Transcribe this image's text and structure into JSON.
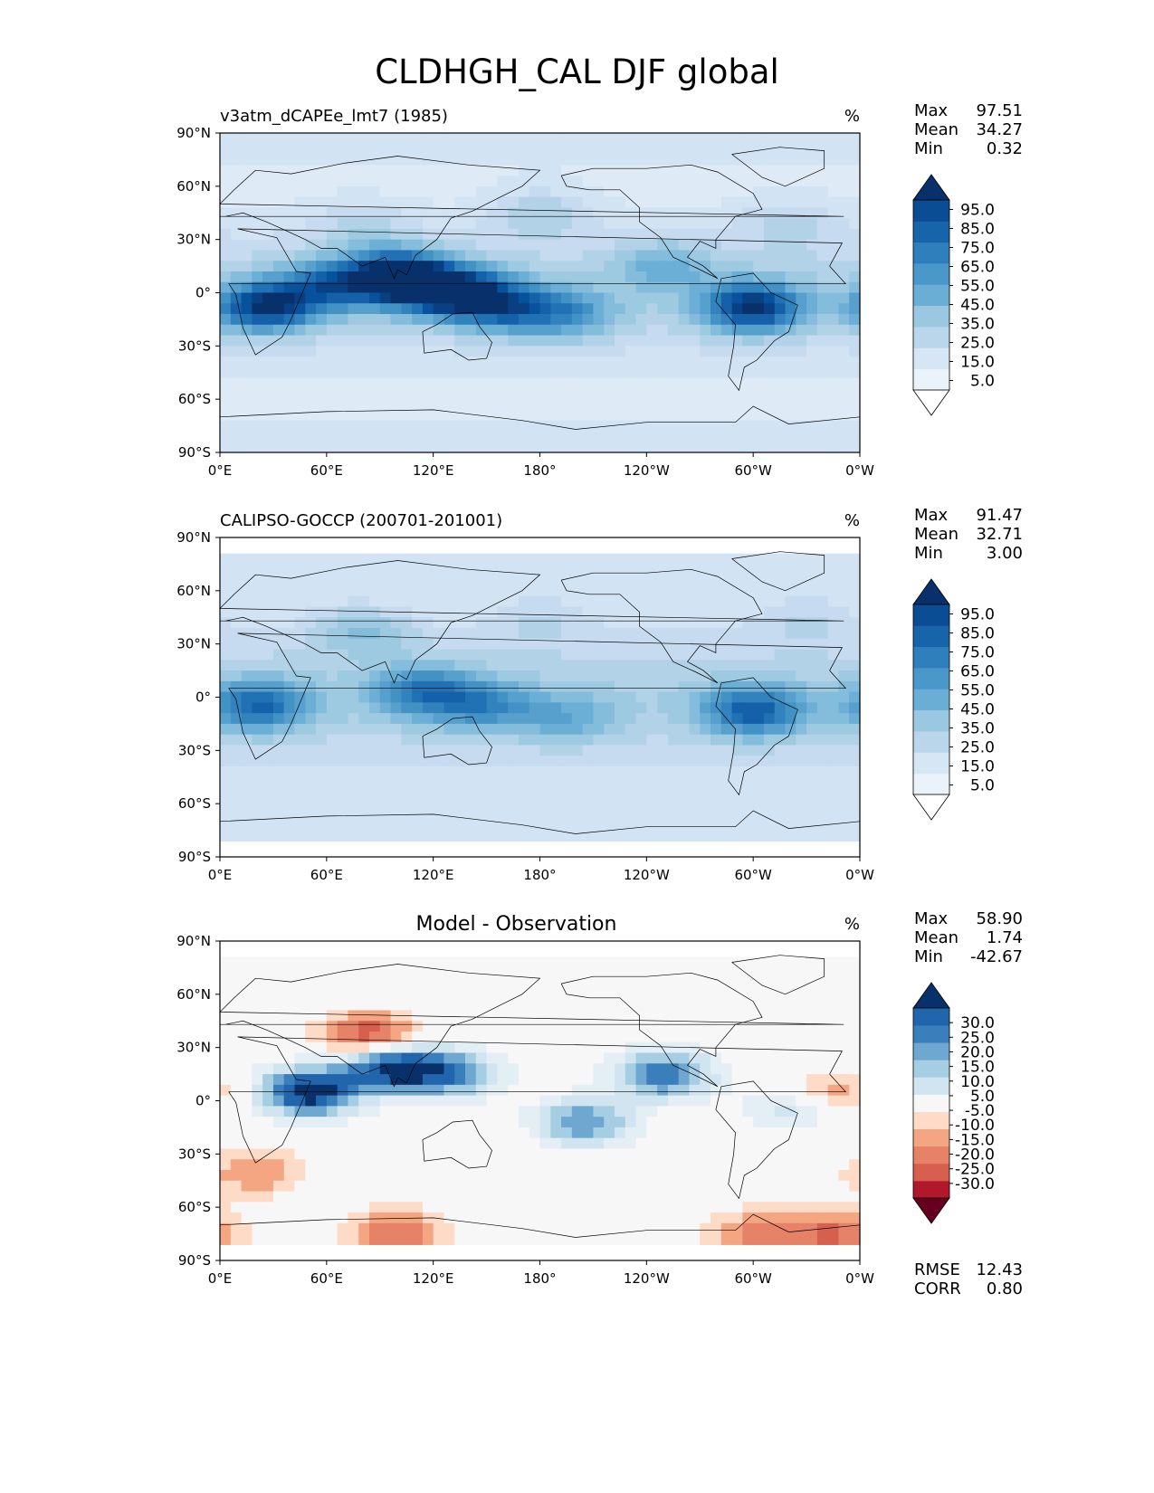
{
  "figure_title": "CLDHGH_CAL DJF global",
  "chart_data": [
    {
      "type": "heatmap",
      "title_left": "v3atm_dCAPEe_lmt7 (1985)",
      "title_center": "",
      "units": "%",
      "stats": [
        {
          "label": "Max",
          "value": "97.51"
        },
        {
          "label": "Mean",
          "value": "34.27"
        },
        {
          "label": "Min",
          "value": "0.32"
        }
      ],
      "colorbar": {
        "scheme": "blues",
        "levels": [
          0,
          5,
          10,
          15,
          20,
          25,
          30,
          35,
          40,
          45,
          50,
          55,
          60,
          65,
          70,
          75,
          80,
          85,
          90,
          95,
          100
        ],
        "tick_labels": [
          "5.0",
          "15.0",
          "25.0",
          "35.0",
          "45.0",
          "55.0",
          "65.0",
          "75.0",
          "85.0",
          "95.0"
        ],
        "extend": "both"
      },
      "x_ticks": [
        "0°E",
        "60°E",
        "120°E",
        "180°",
        "120°W",
        "60°W",
        "0°W"
      ],
      "y_ticks": [
        "90°N",
        "60°N",
        "30°N",
        "0°",
        "30°S",
        "60°S",
        "90°S"
      ],
      "xlim": [
        0,
        360
      ],
      "ylim": [
        -90,
        90
      ],
      "field_features": [
        {
          "lon": 25,
          "lat": -8,
          "value": 90
        },
        {
          "lon": 60,
          "lat": 3,
          "value": 70
        },
        {
          "lon": 95,
          "lat": 12,
          "value": 75
        },
        {
          "lon": 110,
          "lat": 5,
          "value": 85
        },
        {
          "lon": 135,
          "lat": 0,
          "value": 85
        },
        {
          "lon": 160,
          "lat": -8,
          "value": 70
        },
        {
          "lon": 195,
          "lat": -12,
          "value": 60
        },
        {
          "lon": 300,
          "lat": -8,
          "value": 95
        },
        {
          "lon": 250,
          "lat": 15,
          "value": 50
        },
        {
          "lon": 180,
          "lat": 45,
          "value": 45
        },
        {
          "lon": 320,
          "lat": 40,
          "value": 40
        },
        {
          "lon": 80,
          "lat": 38,
          "value": 40
        }
      ],
      "background_value": 28
    },
    {
      "type": "heatmap",
      "title_left": "CALIPSO-GOCCP (200701-201001)",
      "title_center": "",
      "units": "%",
      "stats": [
        {
          "label": "Max",
          "value": "91.47"
        },
        {
          "label": "Mean",
          "value": "32.71"
        },
        {
          "label": "Min",
          "value": "3.00"
        }
      ],
      "colorbar": {
        "scheme": "blues",
        "levels": [
          0,
          5,
          10,
          15,
          20,
          25,
          30,
          35,
          40,
          45,
          50,
          55,
          60,
          65,
          70,
          75,
          80,
          85,
          90,
          95,
          100
        ],
        "tick_labels": [
          "5.0",
          "15.0",
          "25.0",
          "35.0",
          "45.0",
          "55.0",
          "65.0",
          "75.0",
          "85.0",
          "95.0"
        ],
        "extend": "both"
      },
      "x_ticks": [
        "0°E",
        "60°E",
        "120°E",
        "180°",
        "120°W",
        "60°W",
        "0°W"
      ],
      "y_ticks": [
        "90°N",
        "60°N",
        "30°N",
        "0°",
        "30°S",
        "60°S",
        "90°S"
      ],
      "xlim": [
        0,
        360
      ],
      "ylim": [
        -90,
        90
      ],
      "field_features": [
        {
          "lon": 22,
          "lat": -5,
          "value": 75
        },
        {
          "lon": 115,
          "lat": 3,
          "value": 70
        },
        {
          "lon": 150,
          "lat": -5,
          "value": 60
        },
        {
          "lon": 195,
          "lat": -12,
          "value": 50
        },
        {
          "lon": 300,
          "lat": -8,
          "value": 80
        },
        {
          "lon": 80,
          "lat": 38,
          "value": 50
        },
        {
          "lon": 180,
          "lat": 45,
          "value": 40
        },
        {
          "lon": 330,
          "lat": 45,
          "value": 40
        }
      ],
      "background_value": 30
    },
    {
      "type": "heatmap",
      "title_left": "",
      "title_center": "Model - Observation",
      "units": "%",
      "stats": [
        {
          "label": "Max",
          "value": "58.90"
        },
        {
          "label": "Mean",
          "value": "1.74"
        },
        {
          "label": "Min",
          "value": "-42.67"
        }
      ],
      "colorbar": {
        "scheme": "rdbu",
        "levels": [
          -35,
          -30,
          -25,
          -20,
          -15,
          -10,
          -5,
          5,
          10,
          15,
          20,
          25,
          30,
          35
        ],
        "tick_labels": [
          "-30.0",
          "-25.0",
          "-20.0",
          "-15.0",
          "-10.0",
          "-5.0",
          "5.0",
          "10.0",
          "15.0",
          "20.0",
          "25.0",
          "30.0"
        ],
        "extend": "both"
      },
      "x_ticks": [
        "0°E",
        "60°E",
        "120°E",
        "180°",
        "120°W",
        "60°W",
        "0°W"
      ],
      "y_ticks": [
        "90°N",
        "60°N",
        "30°N",
        "0°",
        "30°S",
        "60°S",
        "90°S"
      ],
      "xlim": [
        0,
        360
      ],
      "ylim": [
        -90,
        90
      ],
      "field_features": [
        {
          "lon": 50,
          "lat": 5,
          "value": 40
        },
        {
          "lon": 95,
          "lat": 20,
          "value": 40
        },
        {
          "lon": 130,
          "lat": 15,
          "value": 25
        },
        {
          "lon": 205,
          "lat": -12,
          "value": 25
        },
        {
          "lon": 250,
          "lat": 15,
          "value": 30
        },
        {
          "lon": 325,
          "lat": -3,
          "value": 20
        },
        {
          "lon": 85,
          "lat": 35,
          "value": -30
        },
        {
          "lon": 20,
          "lat": -40,
          "value": -15
        },
        {
          "lon": 100,
          "lat": -75,
          "value": -20
        },
        {
          "lon": 300,
          "lat": -75,
          "value": -15
        },
        {
          "lon": 345,
          "lat": -75,
          "value": -20
        },
        {
          "lon": 340,
          "lat": 3,
          "value": -20
        }
      ],
      "background_value": 0,
      "summary": [
        {
          "label": "RMSE",
          "value": "12.43"
        },
        {
          "label": "CORR",
          "value": "0.80"
        }
      ]
    }
  ]
}
